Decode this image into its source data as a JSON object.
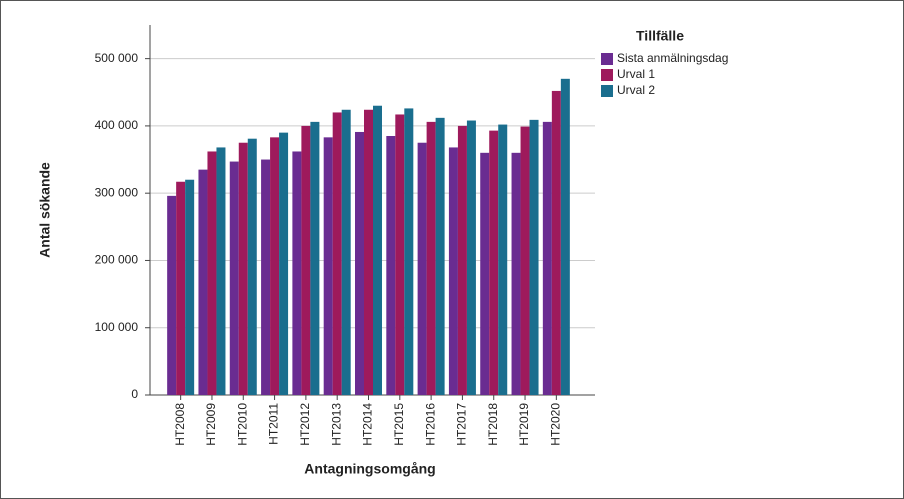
{
  "chart_data": {
    "type": "bar",
    "x_label": "Antagningsomgång",
    "y_label": "Antal sökande",
    "legend_title": "Tillfälle",
    "categories": [
      "HT2008",
      "HT2009",
      "HT2010",
      "HT2011",
      "HT2012",
      "HT2013",
      "HT2014",
      "HT2015",
      "HT2016",
      "HT2017",
      "HT2018",
      "HT2019",
      "HT2020"
    ],
    "series": [
      {
        "name": "Sista anmälningsdag",
        "color": "#6a2c91",
        "values": [
          296000,
          335000,
          347000,
          350000,
          362000,
          383000,
          391000,
          385000,
          375000,
          368000,
          360000,
          360000,
          406000
        ]
      },
      {
        "name": "Urval 1",
        "color": "#9e1a5c",
        "values": [
          317000,
          362000,
          375000,
          383000,
          400000,
          420000,
          424000,
          417000,
          406000,
          400000,
          393000,
          399000,
          452000
        ]
      },
      {
        "name": "Urval 2",
        "color": "#1a6e8e",
        "values": [
          320000,
          368000,
          381000,
          390000,
          406000,
          424000,
          430000,
          426000,
          412000,
          408000,
          402000,
          409000,
          470000
        ]
      }
    ],
    "ylim": [
      0,
      550000
    ],
    "yticks": [
      {
        "value": 0,
        "label": "0"
      },
      {
        "value": 100000,
        "label": "100 000"
      },
      {
        "value": 200000,
        "label": "200 000"
      },
      {
        "value": 300000,
        "label": "300 000"
      },
      {
        "value": 400000,
        "label": "400 000"
      },
      {
        "value": 500000,
        "label": "500 000"
      }
    ],
    "grid": true
  }
}
